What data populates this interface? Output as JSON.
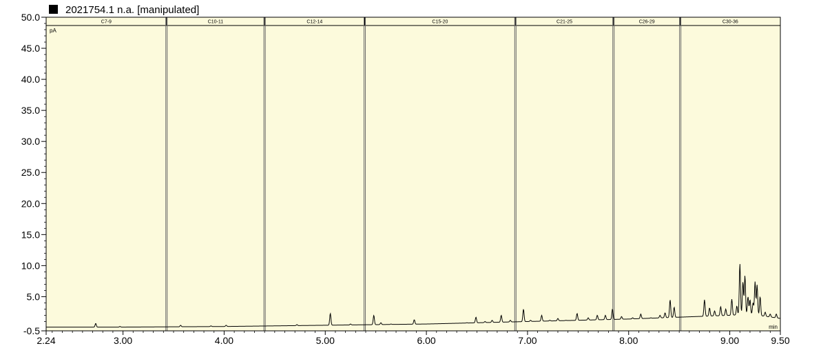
{
  "window": {
    "title": "2021754.1 n.a.  [manipulated]"
  },
  "colors": {
    "plot_bg": "#fcfadc",
    "line": "#000000",
    "grid_divider": "#555555",
    "band_header": "#fcfadc"
  },
  "chart_data": {
    "type": "line",
    "title": "2021754.1 n.a.  [manipulated]",
    "xlabel": "min",
    "ylabel": "pA",
    "xlim": [
      2.24,
      9.5
    ],
    "ylim": [
      -0.5,
      50.0
    ],
    "grid": false,
    "x_ticks": [
      2.24,
      3.0,
      4.0,
      5.0,
      6.0,
      7.0,
      8.0,
      9.0,
      9.5
    ],
    "x_tick_labels": [
      "2.24",
      "3.00",
      "4.00",
      "5.00",
      "6.00",
      "7.00",
      "8.00",
      "9.00",
      "9.50"
    ],
    "y_ticks": [
      -0.5,
      5.0,
      10.0,
      15.0,
      20.0,
      25.0,
      30.0,
      35.0,
      40.0,
      45.0,
      50.0
    ],
    "y_tick_labels": [
      "-0.5",
      "5.0",
      "10.0",
      "15.0",
      "20.0",
      "25.0",
      "30.0",
      "35.0",
      "40.0",
      "45.0",
      "50.0"
    ],
    "bands": [
      {
        "label": "C7-9",
        "start": 2.24,
        "end": 3.43
      },
      {
        "label": "C10-11",
        "start": 3.43,
        "end": 4.4
      },
      {
        "label": "C12-14",
        "start": 4.4,
        "end": 5.39
      },
      {
        "label": "C15-20",
        "start": 5.39,
        "end": 6.88
      },
      {
        "label": "C21-25",
        "start": 6.88,
        "end": 7.85
      },
      {
        "label": "C26-29",
        "start": 7.85,
        "end": 8.51
      },
      {
        "label": "C30-36",
        "start": 8.51,
        "end": 9.5
      }
    ],
    "baseline": [
      [
        2.24,
        0.1
      ],
      [
        3.0,
        0.1
      ],
      [
        4.0,
        0.2
      ],
      [
        5.0,
        0.4
      ],
      [
        5.5,
        0.5
      ],
      [
        6.0,
        0.6
      ],
      [
        6.5,
        0.8
      ],
      [
        7.0,
        1.0
      ],
      [
        7.5,
        1.2
      ],
      [
        8.0,
        1.4
      ],
      [
        8.5,
        1.7
      ],
      [
        9.0,
        2.0
      ],
      [
        9.2,
        2.2
      ],
      [
        9.5,
        1.5
      ]
    ],
    "peaks": [
      [
        2.73,
        0.7
      ],
      [
        2.97,
        0.2
      ],
      [
        3.57,
        0.4
      ],
      [
        3.87,
        0.3
      ],
      [
        4.02,
        0.4
      ],
      [
        4.72,
        0.5
      ],
      [
        5.05,
        2.3
      ],
      [
        5.25,
        0.6
      ],
      [
        5.48,
        2.0
      ],
      [
        5.55,
        0.8
      ],
      [
        5.65,
        0.6
      ],
      [
        5.78,
        0.5
      ],
      [
        5.88,
        1.3
      ],
      [
        6.05,
        0.6
      ],
      [
        6.25,
        0.7
      ],
      [
        6.4,
        0.8
      ],
      [
        6.49,
        1.7
      ],
      [
        6.58,
        1.0
      ],
      [
        6.65,
        1.2
      ],
      [
        6.74,
        2.0
      ],
      [
        6.83,
        1.2
      ],
      [
        6.96,
        3.0
      ],
      [
        7.03,
        1.2
      ],
      [
        7.14,
        2.0
      ],
      [
        7.22,
        1.2
      ],
      [
        7.3,
        1.5
      ],
      [
        7.38,
        1.2
      ],
      [
        7.49,
        2.3
      ],
      [
        7.6,
        1.6
      ],
      [
        7.69,
        2.0
      ],
      [
        7.77,
        2.0
      ],
      [
        7.84,
        3.0
      ],
      [
        7.93,
        1.8
      ],
      [
        8.04,
        1.6
      ],
      [
        8.12,
        2.2
      ],
      [
        8.22,
        1.6
      ],
      [
        8.31,
        2.0
      ],
      [
        8.36,
        2.4
      ],
      [
        8.41,
        4.5
      ],
      [
        8.45,
        3.3
      ],
      [
        8.75,
        4.5
      ],
      [
        8.8,
        3.2
      ],
      [
        8.85,
        2.7
      ],
      [
        8.91,
        3.4
      ],
      [
        8.96,
        3.0
      ],
      [
        9.02,
        4.6
      ],
      [
        9.07,
        3.5
      ],
      [
        9.1,
        10.3
      ],
      [
        9.13,
        7.4
      ],
      [
        9.15,
        8.4
      ],
      [
        9.18,
        5.0
      ],
      [
        9.2,
        4.5
      ],
      [
        9.23,
        4.0
      ],
      [
        9.25,
        7.4
      ],
      [
        9.27,
        6.9
      ],
      [
        9.3,
        5.0
      ],
      [
        9.35,
        2.5
      ],
      [
        9.4,
        2.2
      ],
      [
        9.46,
        2.2
      ]
    ]
  }
}
